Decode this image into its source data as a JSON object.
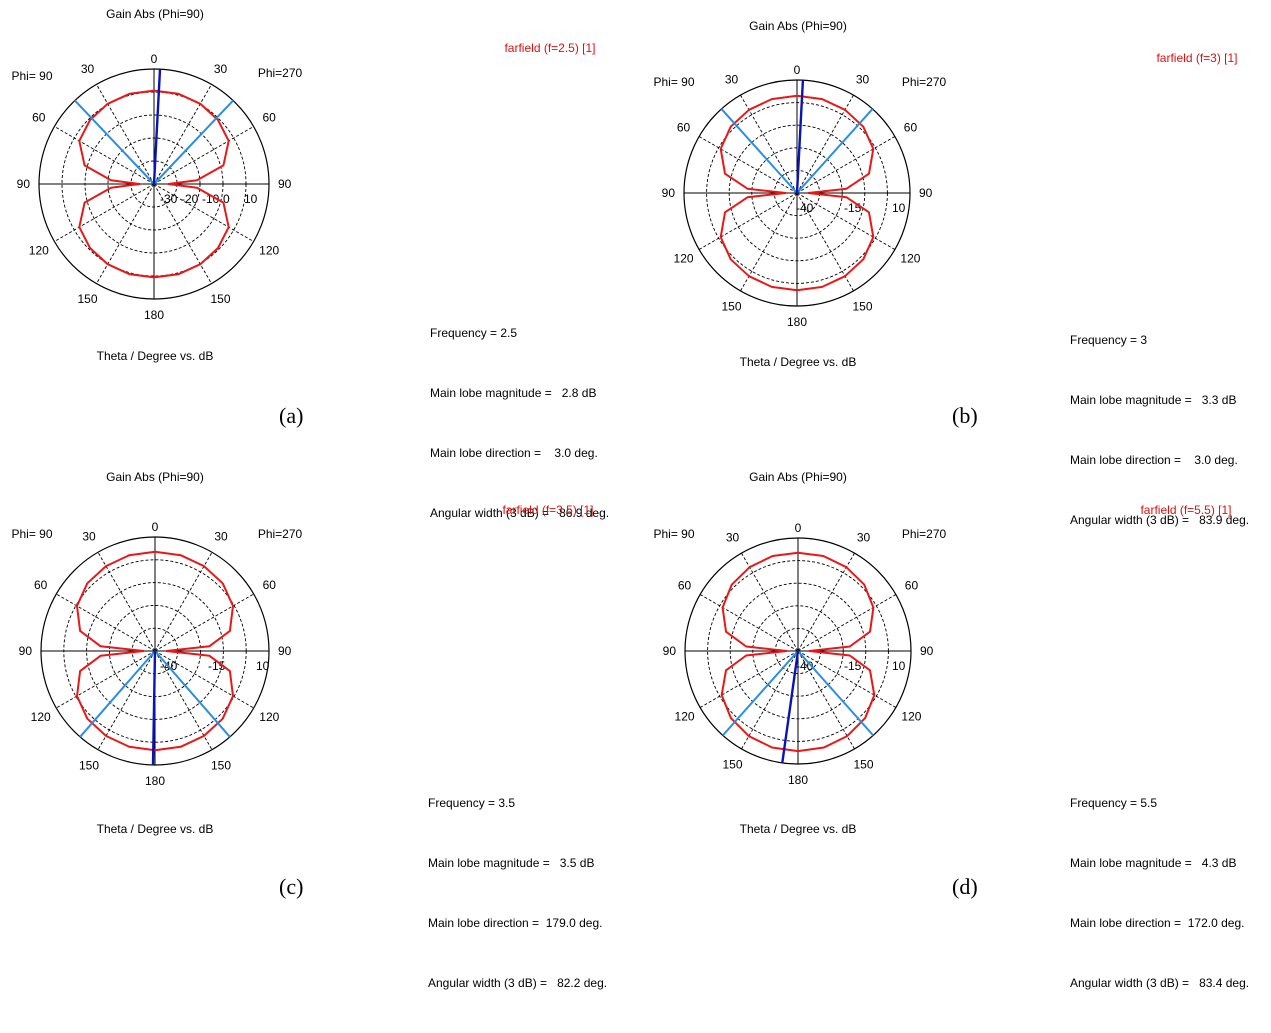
{
  "chart_data": [
    {
      "type": "polar-line",
      "panel_label": "(a)",
      "title": "Gain Abs (Phi=90)",
      "xlabel": "Theta / Degree vs. dB",
      "legend": "farfield (f=2.5) [1]",
      "left_label": "Phi= 90",
      "right_label": "Phi=270",
      "angle_ticks": {
        "top": "0",
        "upper": "30",
        "mid_upper": "60",
        "side": "90",
        "mid_lower": "120",
        "lower": "150",
        "bottom": "180"
      },
      "radial_ticks": [
        "-30",
        "-20",
        "-10",
        "0",
        "10"
      ],
      "rlim": [
        -30,
        10
      ],
      "info": {
        "frequency": "Frequency = 2.5",
        "magnitude": "Main lobe magnitude =   2.8 dB",
        "direction": "Main lobe direction =    3.0 deg.",
        "width": "Angular width (3 dB) =   86.9 deg."
      },
      "main_lobe_direction": 3.0,
      "beam_width": 86.9,
      "series": [
        {
          "theta": [
            0,
            15,
            30,
            45,
            60,
            75,
            85,
            90,
            95,
            105,
            120,
            135,
            150,
            165,
            180
          ],
          "gain_db": [
            2.5,
            2.5,
            2.2,
            1.5,
            0.0,
            -5.0,
            -15.0,
            -25.0,
            -15.0,
            -5.0,
            0.0,
            1.5,
            2.2,
            2.5,
            2.5
          ]
        }
      ]
    },
    {
      "type": "polar-line",
      "panel_label": "(b)",
      "title": "Gain Abs (Phi=90)",
      "xlabel": "Theta / Degree vs. dB",
      "legend": "farfield (f=3) [1]",
      "left_label": "Phi= 90",
      "right_label": "Phi=270",
      "angle_ticks": {
        "top": "0",
        "upper": "30",
        "mid_upper": "60",
        "side": "90",
        "mid_lower": "120",
        "lower": "150",
        "bottom": "180"
      },
      "radial_ticks": [
        "-40",
        "-15",
        "10"
      ],
      "rlim": [
        -40,
        10
      ],
      "info": {
        "frequency": "Frequency = 3",
        "magnitude": "Main lobe magnitude =   3.3 dB",
        "direction": "Main lobe direction =    3.0 deg.",
        "width": "Angular width (3 dB) =   83.9 deg."
      },
      "main_lobe_direction": 3.0,
      "beam_width": 83.9,
      "series": [
        {
          "theta": [
            0,
            15,
            30,
            45,
            60,
            75,
            85,
            90,
            95,
            105,
            120,
            135,
            150,
            165,
            180
          ],
          "gain_db": [
            3.0,
            3.0,
            2.5,
            1.5,
            -1.0,
            -7.0,
            -18.0,
            -35.0,
            -18.0,
            -7.0,
            -1.0,
            1.5,
            2.5,
            3.0,
            3.0
          ]
        }
      ]
    },
    {
      "type": "polar-line",
      "panel_label": "(c)",
      "title": "Gain Abs (Phi=90)",
      "xlabel": "Theta / Degree vs. dB",
      "legend": "farfield (f=3.5) [1]",
      "left_label": "Phi= 90",
      "right_label": "Phi=270",
      "angle_ticks": {
        "top": "0",
        "upper": "30",
        "mid_upper": "60",
        "side": "90",
        "mid_lower": "120",
        "lower": "150",
        "bottom": "180"
      },
      "radial_ticks": [
        "-40",
        "-15",
        "10"
      ],
      "rlim": [
        -40,
        10
      ],
      "info": {
        "frequency": "Frequency = 3.5",
        "magnitude": "Main lobe magnitude =   3.5 dB",
        "direction": "Main lobe direction =  179.0 deg.",
        "width": "Angular width (3 dB) =   82.2 deg."
      },
      "main_lobe_direction": 179.0,
      "beam_width": 82.2,
      "series": [
        {
          "theta": [
            0,
            15,
            30,
            45,
            60,
            75,
            85,
            90,
            95,
            105,
            120,
            135,
            150,
            165,
            180
          ],
          "gain_db": [
            3.5,
            3.5,
            3.0,
            2.0,
            -0.5,
            -6.0,
            -16.0,
            -35.0,
            -16.0,
            -6.0,
            -0.5,
            2.0,
            3.0,
            3.5,
            3.5
          ]
        }
      ]
    },
    {
      "type": "polar-line",
      "panel_label": "(d)",
      "title": "Gain Abs (Phi=90)",
      "xlabel": "Theta / Degree vs. dB",
      "legend": "farfield (f=5.5) [1]",
      "left_label": "Phi= 90",
      "right_label": "Phi=270",
      "angle_ticks": {
        "top": "0",
        "upper": "30",
        "mid_upper": "60",
        "side": "90",
        "mid_lower": "120",
        "lower": "150",
        "bottom": "180"
      },
      "radial_ticks": [
        "-40",
        "-15",
        "10"
      ],
      "rlim": [
        -40,
        10
      ],
      "info": {
        "frequency": "Frequency = 5.5",
        "magnitude": "Main lobe magnitude =   4.3 dB",
        "direction": "Main lobe direction =  172.0 deg.",
        "width": "Angular width (3 dB) =   83.4 deg."
      },
      "main_lobe_direction": 172.0,
      "beam_width": 83.4,
      "series": [
        {
          "theta": [
            0,
            15,
            30,
            45,
            60,
            75,
            85,
            90,
            95,
            105,
            120,
            135,
            150,
            165,
            180
          ],
          "gain_db": [
            3.5,
            3.5,
            2.8,
            1.5,
            -1.5,
            -7.0,
            -17.0,
            -35.0,
            -17.0,
            -7.0,
            -1.0,
            2.0,
            3.5,
            4.2,
            4.3
          ]
        }
      ]
    }
  ],
  "colors": {
    "pattern": "#e81818",
    "main_lobe": "#0a14b4",
    "beam_width": "#2a8ee0",
    "grid": "#000000",
    "legend_text": "#e01010"
  }
}
